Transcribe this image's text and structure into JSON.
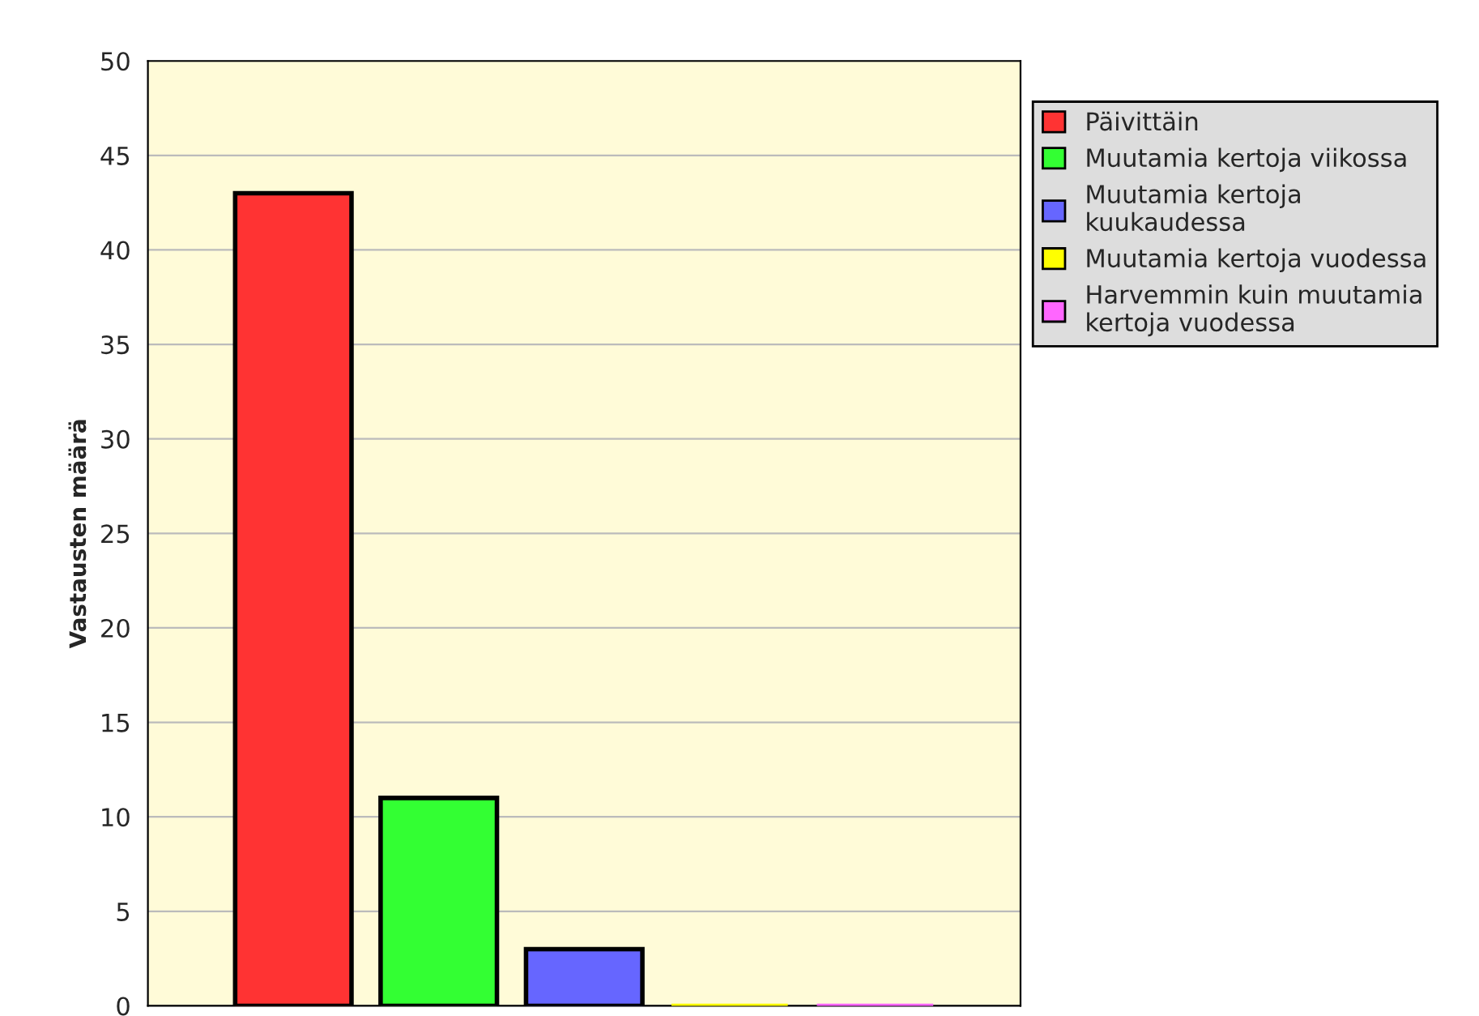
{
  "chart_data": {
    "type": "bar",
    "ylabel": "Vastausten määrä",
    "categories": [
      null,
      null,
      null,
      null,
      null
    ],
    "series": [
      {
        "name": "Päivittäin",
        "color": "#ff3333",
        "values": [
          43,
          null,
          null,
          null,
          null
        ]
      },
      {
        "name": "Muutamia kertoja viikossa",
        "color": "#33ff33",
        "values": [
          null,
          11,
          null,
          null,
          null
        ]
      },
      {
        "name": "Muutamia kertoja kuukaudessa",
        "color": "#6666ff",
        "values": [
          null,
          null,
          3,
          null,
          null
        ]
      },
      {
        "name": "Muutamia kertoja vuodessa",
        "color": "#ffff00",
        "values": [
          null,
          null,
          null,
          0,
          null
        ]
      },
      {
        "name": "Harvemmin kuin muutamia kertoja vuodessa",
        "color": "#ff66ff",
        "values": [
          null,
          null,
          null,
          null,
          0
        ]
      }
    ],
    "ylim": [
      0,
      50
    ],
    "yticks": [
      0,
      5,
      10,
      15,
      20,
      25,
      30,
      35,
      40,
      45,
      50
    ],
    "grid": "y",
    "legend": "top right"
  }
}
